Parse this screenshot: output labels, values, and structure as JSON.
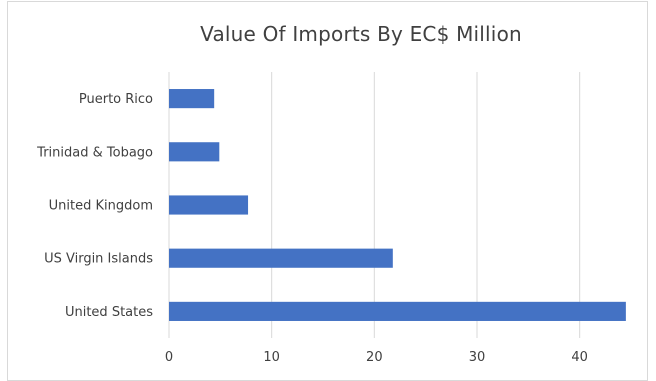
{
  "chart_data": {
    "type": "bar",
    "orientation": "horizontal",
    "title": "Value Of Imports By EC$ Million",
    "categories": [
      "United States",
      "US Virgin Islands",
      "United Kingdom",
      "Trinidad & Tobago",
      "Puerto Rico"
    ],
    "values": [
      44.5,
      21.8,
      7.7,
      4.9,
      4.4
    ],
    "xlim": [
      0,
      45
    ],
    "x_ticks": [
      0,
      10,
      20,
      30,
      40
    ],
    "xlabel": "",
    "ylabel": "",
    "grid": "vertical",
    "legend": "none",
    "bar_color": "#4472c4",
    "grid_color": "#d9d9d9"
  }
}
